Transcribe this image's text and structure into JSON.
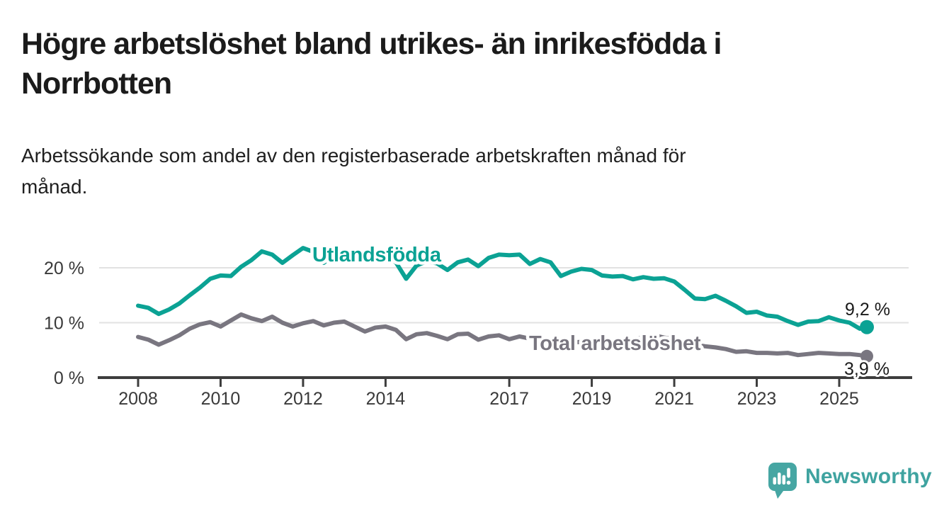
{
  "header": {
    "title": "Högre arbetslöshet bland utrikes- än inrikesfödda i Norrbotten",
    "title_lines": [
      "Högre arbetslöshet bland utrikes- än inrikesfödda i",
      "Norrbotten"
    ],
    "subtitle": "Arbetssökande som andel av den registerbaserade arbetskraften månad för månad.",
    "subtitle_lines": [
      "Arbetssökande som andel av den registerbaserade arbetskraften månad för",
      "månad."
    ]
  },
  "chart_data": {
    "type": "line",
    "title": "Högre arbetslöshet bland utrikes- än inrikesfödda i Norrbotten",
    "subtitle": "Arbetssökande som andel av den registerbaserade arbetskraften månad för månad.",
    "unit": "%",
    "grid": true,
    "legend_position": "inline",
    "xlim": [
      2007.8,
      2026.5
    ],
    "ylim": [
      0,
      25
    ],
    "x_ticks": [
      2008,
      2010,
      2012,
      2014,
      2017,
      2019,
      2021,
      2023,
      2025
    ],
    "x_tick_labels": [
      "2008",
      "2010",
      "2012",
      "2014",
      "2017",
      "2019",
      "2021",
      "2023",
      "2025"
    ],
    "y_ticks": [
      0,
      10,
      20
    ],
    "y_tick_labels": [
      "0 %",
      "10 %",
      "20 %"
    ],
    "x": [
      2008,
      2008.25,
      2008.5,
      2008.75,
      2009,
      2009.25,
      2009.5,
      2009.75,
      2010,
      2010.25,
      2010.5,
      2010.75,
      2011,
      2011.25,
      2011.5,
      2011.75,
      2012,
      2012.25,
      2012.5,
      2012.75,
      2013,
      2013.25,
      2013.5,
      2013.75,
      2014,
      2014.25,
      2014.5,
      2014.75,
      2015,
      2015.25,
      2015.5,
      2015.75,
      2016,
      2016.25,
      2016.5,
      2016.75,
      2017,
      2017.25,
      2017.5,
      2017.75,
      2018,
      2018.25,
      2018.5,
      2018.75,
      2019,
      2019.25,
      2019.5,
      2019.75,
      2020,
      2020.25,
      2020.5,
      2020.75,
      2021,
      2021.25,
      2021.5,
      2021.75,
      2022,
      2022.25,
      2022.5,
      2022.75,
      2023,
      2023.25,
      2023.5,
      2023.75,
      2024,
      2024.25,
      2024.5,
      2024.75,
      2025,
      2025.25,
      2025.5,
      2025.67
    ],
    "series": [
      {
        "name": "Utlandsfödda",
        "color": "#0ba294",
        "end_value": 9.2,
        "end_label": "9,2 %",
        "values": [
          13.1,
          12.7,
          11.6,
          12.4,
          13.5,
          15.0,
          16.4,
          18.0,
          18.6,
          18.5,
          20.2,
          21.4,
          23.0,
          22.4,
          20.9,
          22.3,
          23.6,
          22.9,
          20.9,
          22.5,
          22.4,
          22.0,
          21.4,
          21.8,
          22.1,
          21.0,
          18.0,
          20.4,
          21.2,
          20.8,
          19.6,
          21.0,
          21.5,
          20.3,
          21.8,
          22.4,
          22.3,
          22.4,
          20.7,
          21.6,
          21.0,
          18.5,
          19.3,
          19.8,
          19.6,
          18.6,
          18.4,
          18.5,
          17.9,
          18.3,
          18.0,
          18.1,
          17.5,
          16.0,
          14.4,
          14.3,
          14.9,
          14.0,
          13.0,
          11.8,
          12.0,
          11.3,
          11.1,
          10.3,
          9.6,
          10.2,
          10.3,
          11.0,
          10.4,
          10.0,
          8.9,
          9.2
        ]
      },
      {
        "name": "Total arbetslöshet",
        "color": "#797680",
        "end_value": 3.9,
        "end_label": "3,9 %",
        "values": [
          7.4,
          6.9,
          6.0,
          6.8,
          7.7,
          8.9,
          9.7,
          10.1,
          9.3,
          10.4,
          11.5,
          10.8,
          10.3,
          11.1,
          10.0,
          9.3,
          9.9,
          10.3,
          9.5,
          10.0,
          10.2,
          9.3,
          8.4,
          9.1,
          9.3,
          8.7,
          7.0,
          7.9,
          8.1,
          7.6,
          7.0,
          7.9,
          8.0,
          6.9,
          7.5,
          7.7,
          7.0,
          7.5,
          7.1,
          6.8,
          6.7,
          6.2,
          6.4,
          6.5,
          6.4,
          6.2,
          6.3,
          6.5,
          6.6,
          7.5,
          7.7,
          7.3,
          7.0,
          6.4,
          6.0,
          5.7,
          5.5,
          5.2,
          4.7,
          4.8,
          4.5,
          4.5,
          4.4,
          4.5,
          4.1,
          4.3,
          4.5,
          4.4,
          4.3,
          4.3,
          4.1,
          3.9
        ]
      }
    ]
  },
  "brand": {
    "name": "Newsworthy",
    "color": "#46a6a3"
  },
  "colors": {
    "accent_teal": "#0ba294",
    "line_gray": "#797680",
    "gridline": "#e2e2e2",
    "axis": "#3d3d3d",
    "title_text": "#1b1b1b"
  }
}
